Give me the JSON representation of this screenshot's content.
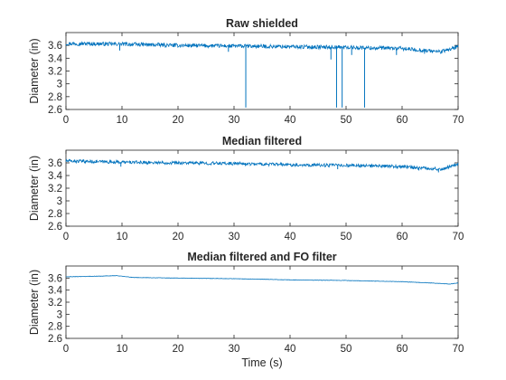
{
  "chart_data": [
    {
      "type": "line",
      "title": "Raw shielded",
      "xlabel": "",
      "ylabel": "Diameter (in)",
      "xlim": [
        0,
        70
      ],
      "ylim": [
        2.6,
        3.8
      ],
      "xticks": [
        0,
        10,
        20,
        30,
        40,
        50,
        60,
        70
      ],
      "yticks": [
        2.6,
        2.8,
        3,
        3.2,
        3.4,
        3.6
      ],
      "color": "#0072bd",
      "trend": [
        [
          0,
          3.63
        ],
        [
          10,
          3.62
        ],
        [
          20,
          3.6
        ],
        [
          30,
          3.59
        ],
        [
          40,
          3.58
        ],
        [
          50,
          3.57
        ],
        [
          60,
          3.55
        ],
        [
          67,
          3.5
        ],
        [
          70,
          3.58
        ]
      ],
      "noise_amplitude": 0.03,
      "spikes": [
        [
          9.6,
          3.52
        ],
        [
          29,
          3.5
        ],
        [
          32.1,
          2.63
        ],
        [
          47.3,
          3.38
        ],
        [
          48.3,
          2.63
        ],
        [
          49.3,
          2.63
        ],
        [
          51,
          3.45
        ],
        [
          53.3,
          2.63
        ],
        [
          59,
          3.45
        ],
        [
          64,
          3.47
        ]
      ]
    },
    {
      "type": "line",
      "title": "Median filtered",
      "xlabel": "",
      "ylabel": "Diameter (in)",
      "xlim": [
        0,
        70
      ],
      "ylim": [
        2.6,
        3.8
      ],
      "xticks": [
        0,
        10,
        20,
        30,
        40,
        50,
        60,
        70
      ],
      "yticks": [
        2.6,
        2.8,
        3,
        3.2,
        3.4,
        3.6
      ],
      "color": "#0072bd",
      "trend": [
        [
          0,
          3.63
        ],
        [
          10,
          3.61
        ],
        [
          20,
          3.6
        ],
        [
          30,
          3.59
        ],
        [
          40,
          3.57
        ],
        [
          50,
          3.56
        ],
        [
          60,
          3.54
        ],
        [
          67,
          3.5
        ],
        [
          70,
          3.58
        ]
      ],
      "noise_amplitude": 0.025,
      "spikes": [
        [
          9.8,
          3.54
        ],
        [
          32,
          3.55
        ],
        [
          48.5,
          3.5
        ],
        [
          63,
          3.48
        ],
        [
          66.5,
          3.45
        ]
      ]
    },
    {
      "type": "line",
      "title": "Median filtered and FO filter",
      "xlabel": "Time (s)",
      "ylabel": "Diameter (in)",
      "xlim": [
        0,
        70
      ],
      "ylim": [
        2.6,
        3.8
      ],
      "xticks": [
        0,
        10,
        20,
        30,
        40,
        50,
        60,
        70
      ],
      "yticks": [
        2.6,
        2.8,
        3,
        3.2,
        3.4,
        3.6
      ],
      "color": "#0072bd",
      "trend": [
        [
          0,
          3.62
        ],
        [
          5,
          3.63
        ],
        [
          9,
          3.64
        ],
        [
          12,
          3.61
        ],
        [
          20,
          3.6
        ],
        [
          30,
          3.59
        ],
        [
          40,
          3.57
        ],
        [
          50,
          3.56
        ],
        [
          60,
          3.54
        ],
        [
          67,
          3.51
        ],
        [
          68.5,
          3.5
        ],
        [
          70,
          3.52
        ]
      ],
      "noise_amplitude": 0.003,
      "spikes": []
    }
  ]
}
